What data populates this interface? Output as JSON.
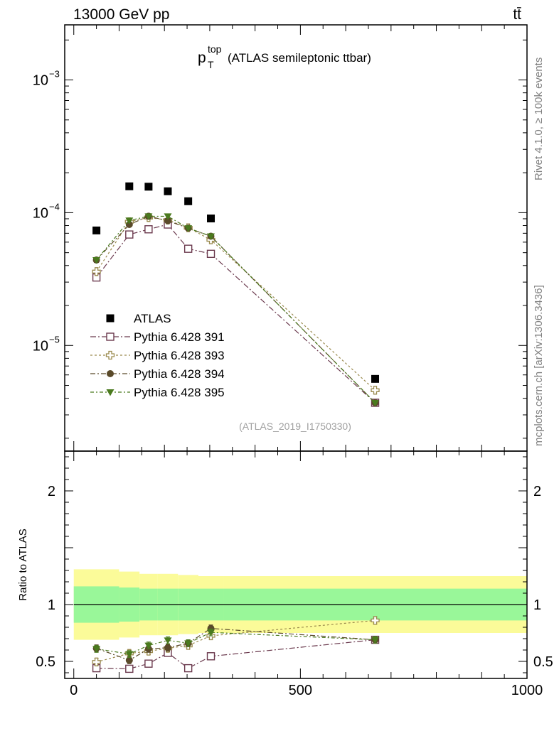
{
  "header": {
    "left_label": "13000 GeV pp",
    "right_label": "tt̄"
  },
  "side_labels": {
    "rivet": "Rivet 4.1.0, ≥ 100k events",
    "mcplots": "mcplots.cern.ch [arXiv:1306.3436]"
  },
  "colors": {
    "atlas": "#000000",
    "p391": "#6b3a4e",
    "p393": "#9a8a4e",
    "p394": "#5a4a2a",
    "p395": "#4a7a1e",
    "band_inner": "#99f799",
    "band_outer": "#fbfb99"
  },
  "chart_data": [
    {
      "type": "scatter",
      "panel": "main",
      "title": "p_T^top (ATLAS semileptonic ttbar)",
      "title_main": "p",
      "title_sup": "top",
      "title_sub": "T",
      "title_rest": "(ATLAS semileptonic ttbar)",
      "analysis_id": "(ATLAS_2019_I1750330)",
      "yscale": "log",
      "xlim": [
        -20,
        1000
      ],
      "ylim": [
        1.6e-06,
        0.0026
      ],
      "y_ticks": [
        {
          "value": 1e-05,
          "base": "10",
          "exp": "−5"
        },
        {
          "value": 0.0001,
          "base": "10",
          "exp": "−4"
        },
        {
          "value": 0.001,
          "base": "10",
          "exp": "−3"
        }
      ],
      "x": [
        50,
        122.5,
        165,
        207.5,
        252.5,
        302.5,
        665
      ],
      "series": [
        {
          "name": "ATLAS",
          "key": "atlas",
          "marker": "square-filled",
          "values": [
            7.35e-05,
            0.000158,
            0.000157,
            0.000145,
            0.000122,
            9.05e-05,
            5.6e-06
          ]
        },
        {
          "name": "Pythia 6.428 391",
          "key": "p391",
          "marker": "square-open",
          "values": [
            3.25e-05,
            6.85e-05,
            7.5e-05,
            8.15e-05,
            5.35e-05,
            4.9e-05,
            3.7e-06
          ]
        },
        {
          "name": "Pythia 6.428 393",
          "key": "p393",
          "marker": "cross-open",
          "values": [
            3.6e-05,
            8.55e-05,
            9.2e-05,
            8.8e-05,
            7.7e-05,
            6.25e-05,
            4.6e-06
          ]
        },
        {
          "name": "Pythia 6.428 394",
          "key": "p394",
          "marker": "circle-filled",
          "values": [
            4.4e-05,
            8.15e-05,
            9.4e-05,
            8.7e-05,
            7.65e-05,
            6.65e-05,
            3.7e-06
          ]
        },
        {
          "name": "Pythia 6.428 395",
          "key": "p395",
          "marker": "triangle-down-filled",
          "values": [
            4.4e-05,
            8.75e-05,
            9.4e-05,
            9.4e-05,
            7.65e-05,
            6.65e-05,
            3.7e-06
          ]
        }
      ]
    },
    {
      "type": "scatter",
      "panel": "ratio",
      "ylabel": "Ratio to ATLAS",
      "xlim": [
        -20,
        1000
      ],
      "ylim": [
        0.35,
        2.35
      ],
      "x_ticks": [
        0,
        500,
        1000
      ],
      "y_ticks": [
        0.5,
        1,
        2
      ],
      "x": [
        50,
        122.5,
        165,
        207.5,
        252.5,
        302.5,
        665
      ],
      "band": {
        "edges": [
          0,
          100,
          145,
          185,
          230,
          275,
          330,
          1000
        ],
        "inner": [
          0.16,
          0.15,
          0.14,
          0.14,
          0.14,
          0.14,
          0.14
        ],
        "outer": [
          0.31,
          0.29,
          0.27,
          0.27,
          0.26,
          0.25,
          0.25
        ]
      },
      "series": [
        {
          "name": "Pythia 6.428 391",
          "key": "p391",
          "marker": "square-open",
          "values": [
            0.44,
            0.435,
            0.48,
            0.575,
            0.44,
            0.545,
            0.69
          ],
          "err": 0.03
        },
        {
          "name": "Pythia 6.428 393",
          "key": "p393",
          "marker": "cross-open",
          "values": [
            0.495,
            0.57,
            0.59,
            0.615,
            0.64,
            0.725,
            0.86
          ],
          "err": 0.03
        },
        {
          "name": "Pythia 6.428 394",
          "key": "p394",
          "marker": "circle-filled",
          "values": [
            0.615,
            0.51,
            0.61,
            0.62,
            0.66,
            0.79,
            0.69
          ],
          "err": 0.03
        },
        {
          "name": "Pythia 6.428 395",
          "key": "p395",
          "marker": "triangle-down-filled",
          "values": [
            0.61,
            0.565,
            0.64,
            0.685,
            0.66,
            0.755,
            0.69
          ],
          "err": 0.03
        }
      ]
    }
  ]
}
